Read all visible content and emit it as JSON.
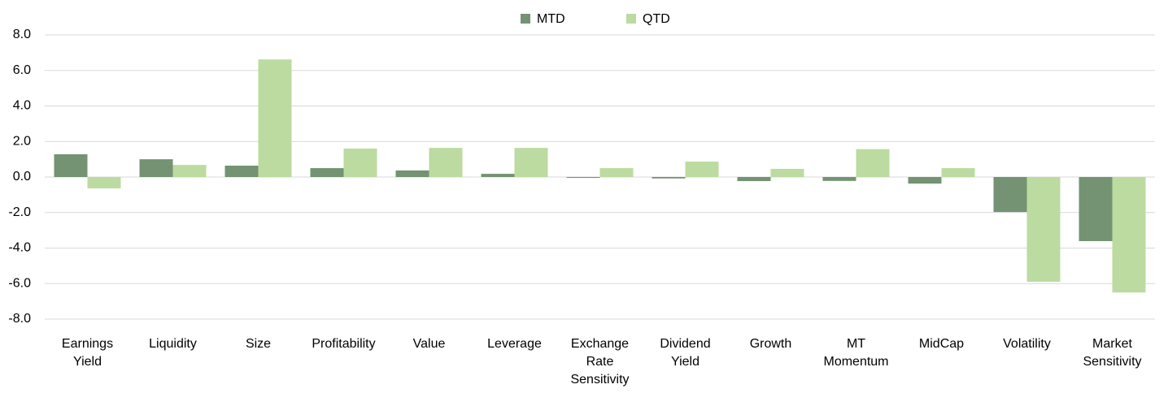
{
  "chart_data": {
    "type": "bar",
    "categories": [
      "Earnings Yield",
      "Liquidity",
      "Size",
      "Profitability",
      "Value",
      "Leverage",
      "Exchange Rate Sensitivity",
      "Dividend Yield",
      "Growth",
      "MT Momentum",
      "MidCap",
      "Volatility",
      "Market Sensitivity"
    ],
    "series": [
      {
        "name": "MTD",
        "color": "#739372",
        "values": [
          1.28,
          1.0,
          0.64,
          0.5,
          0.37,
          0.18,
          -0.05,
          -0.08,
          -0.23,
          -0.22,
          -0.37,
          -1.97,
          -3.61
        ]
      },
      {
        "name": "QTD",
        "color": "#bcdba0",
        "values": [
          -0.64,
          0.68,
          6.62,
          1.6,
          1.64,
          1.64,
          0.5,
          0.87,
          0.46,
          1.57,
          0.5,
          -5.9,
          -6.5
        ]
      }
    ],
    "ylim": [
      -8,
      8
    ],
    "yticks": [
      {
        "value": 8,
        "label": "8.0"
      },
      {
        "value": 6,
        "label": "6.0"
      },
      {
        "value": 4,
        "label": "4.0"
      },
      {
        "value": 2,
        "label": "2.0"
      },
      {
        "value": 0,
        "label": "0.0"
      },
      {
        "value": -2,
        "label": "-2.0"
      },
      {
        "value": -4,
        "label": "-4.0"
      },
      {
        "value": -6,
        "label": "-6.0"
      },
      {
        "value": -8,
        "label": "-8.0"
      }
    ],
    "grid": true,
    "legend": "top"
  }
}
